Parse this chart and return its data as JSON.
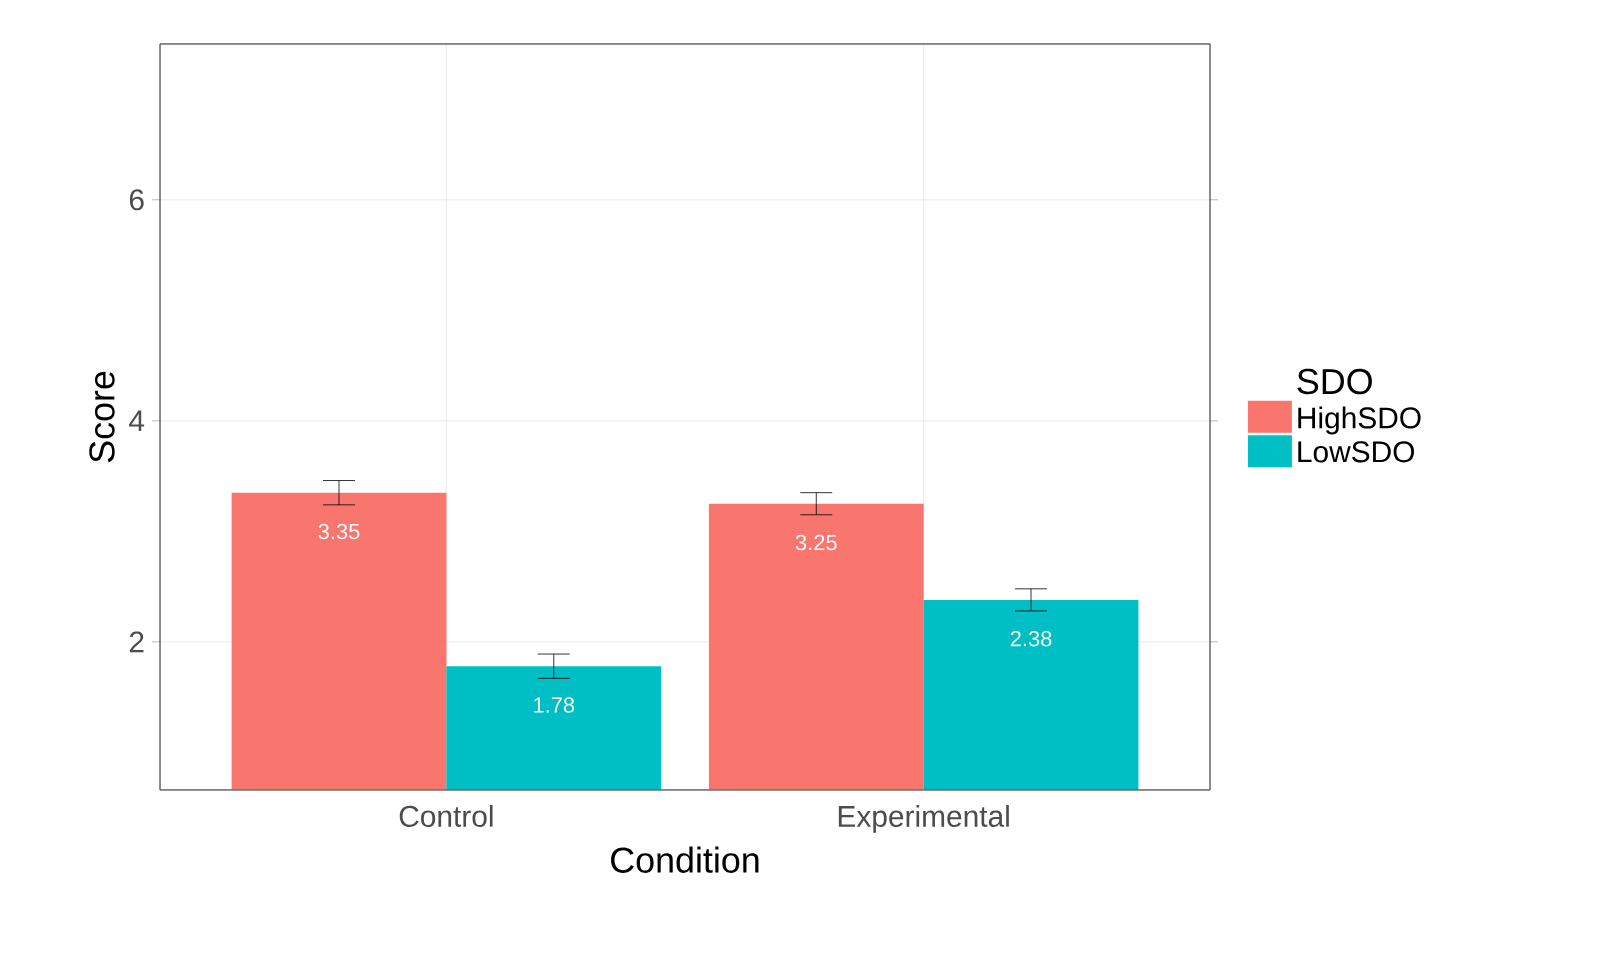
{
  "chart_data": {
    "type": "bar",
    "xlabel": "Condition",
    "ylabel": "Score",
    "legend_title": "SDO",
    "categories": [
      "Control",
      "Experimental"
    ],
    "series": [
      {
        "name": "HighSDO",
        "color": "#f8766d",
        "values": [
          3.35,
          3.25
        ],
        "errors": [
          0.11,
          0.1
        ],
        "value_labels": [
          "3.35",
          "3.25"
        ]
      },
      {
        "name": "LowSDO",
        "color": "#00bfc4",
        "values": [
          1.78,
          2.38
        ],
        "errors": [
          0.11,
          0.1
        ],
        "value_labels": [
          "1.78",
          "2.38"
        ]
      }
    ],
    "ylim": [
      0.66,
      7.41
    ],
    "yticks": [
      2,
      4,
      6
    ],
    "grid": true,
    "legend": "right"
  }
}
